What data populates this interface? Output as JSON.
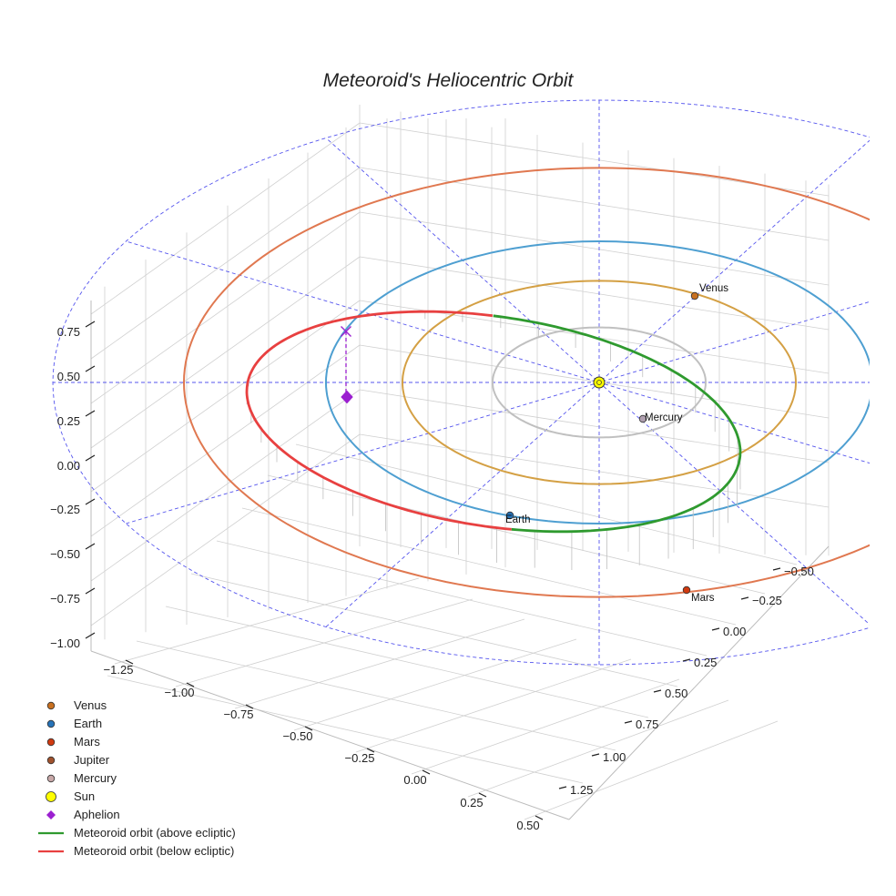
{
  "chart_data": {
    "type": "scatter",
    "projection": "3d",
    "title": "Meteoroid's Heliocentric Orbit",
    "axes": {
      "x": {
        "ticks": [
          -1.25,
          -1.0,
          -0.75,
          -0.5,
          -0.25,
          0.0,
          0.25,
          0.5
        ],
        "tick_labels": [
          "−1.25",
          "−1.00",
          "−0.75",
          "−0.50",
          "−0.25",
          "0.00",
          "0.25",
          "0.50"
        ]
      },
      "y": {
        "ticks": [
          -0.5,
          -0.25,
          0.0,
          0.25,
          0.5,
          0.75,
          1.0,
          1.25
        ],
        "tick_labels": [
          "−0.50",
          "−0.25",
          "0.00",
          "0.25",
          "0.50",
          "0.75",
          "1.00",
          "1.25"
        ]
      },
      "z": {
        "ticks": [
          -1.0,
          -0.75,
          -0.5,
          -0.25,
          0.0,
          0.25,
          0.5,
          0.75
        ],
        "tick_labels": [
          "−1.00",
          "−0.75",
          "−0.50",
          "−0.25",
          "0.00",
          "0.25",
          "0.50",
          "0.75"
        ]
      }
    },
    "planet_orbits": [
      {
        "name": "Mercury",
        "radius_au": 0.39,
        "color": "#c0c0c0"
      },
      {
        "name": "Venus",
        "radius_au": 0.72,
        "color": "#d4a044"
      },
      {
        "name": "Earth",
        "radius_au": 1.0,
        "color": "#4e9fd1"
      },
      {
        "name": "Mars",
        "radius_au": 1.52,
        "color": "#e07850"
      }
    ],
    "bodies": [
      {
        "name": "Venus",
        "label": "Venus",
        "color": "#c87020"
      },
      {
        "name": "Earth",
        "label": "Earth",
        "color": "#2673b8"
      },
      {
        "name": "Mars",
        "label": "Mars",
        "color": "#d03a10"
      },
      {
        "name": "Mercury",
        "label": "Mercury",
        "color": "#b0a0b0"
      },
      {
        "name": "Sun",
        "label": "",
        "color": "#ffff00"
      }
    ],
    "meteoroid_orbit": {
      "above_color": "#2f9a2f",
      "below_color": "#e84040"
    },
    "aphelion_color": "#9b1fd0",
    "guide_color": "#5555ee",
    "legend": {
      "position": "bottom-left",
      "entries": [
        {
          "label": "Venus",
          "marker": "circle",
          "color": "#c87020"
        },
        {
          "label": "Earth",
          "marker": "circle",
          "color": "#2673b8"
        },
        {
          "label": "Mars",
          "marker": "circle",
          "color": "#d03a10"
        },
        {
          "label": "Jupiter",
          "marker": "circle",
          "color": "#a0522d"
        },
        {
          "label": "Mercury",
          "marker": "circle",
          "color": "#c8a8a8"
        },
        {
          "label": "Sun",
          "marker": "circle-large",
          "color": "#ffff00"
        },
        {
          "label": "Aphelion",
          "marker": "diamond",
          "color": "#9b1fd0"
        },
        {
          "label": "Meteoroid orbit (above ecliptic)",
          "marker": "line",
          "color": "#2f9a2f"
        },
        {
          "label": "Meteoroid orbit (below ecliptic)",
          "marker": "line",
          "color": "#e84040"
        }
      ]
    }
  }
}
